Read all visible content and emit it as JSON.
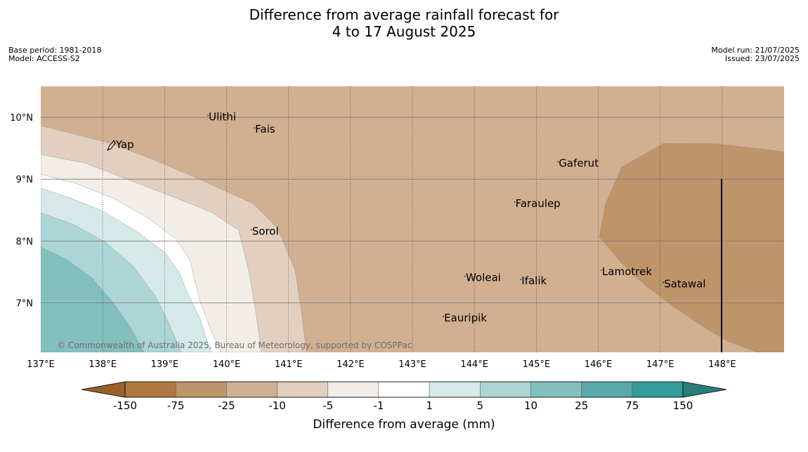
{
  "title_line1": "Difference from average rainfall forecast for",
  "title_line2": "4 to 17 August 2025",
  "meta_left": [
    "Base period: 1981-2018",
    "Model: ACCESS-S2"
  ],
  "meta_right": [
    "Model run: 21/07/2025",
    "Issued: 23/07/2025"
  ],
  "x_axis": {
    "ticks": [
      {
        "value": 137,
        "label": "137°E"
      },
      {
        "value": 138,
        "label": "138°E"
      },
      {
        "value": 139,
        "label": "139°E"
      },
      {
        "value": 140,
        "label": "140°E"
      },
      {
        "value": 141,
        "label": "141°E"
      },
      {
        "value": 142,
        "label": "142°E"
      },
      {
        "value": 143,
        "label": "143°E"
      },
      {
        "value": 144,
        "label": "144°E"
      },
      {
        "value": 145,
        "label": "145°E"
      },
      {
        "value": 146,
        "label": "146°E"
      },
      {
        "value": 147,
        "label": "147°E"
      },
      {
        "value": 148,
        "label": "148°E"
      }
    ],
    "range": [
      137,
      149
    ]
  },
  "y_axis": {
    "ticks": [
      {
        "value": 10,
        "label": "10°N"
      },
      {
        "value": 9,
        "label": "9°N"
      },
      {
        "value": 8,
        "label": "8°N"
      },
      {
        "value": 7,
        "label": "7°N"
      }
    ],
    "range": [
      6.2,
      10.5
    ]
  },
  "places": [
    {
      "name": "Yap",
      "lon": 138.2,
      "lat": 9.5
    },
    {
      "name": "Ulithi",
      "lon": 139.7,
      "lat": 9.95
    },
    {
      "name": "Fais",
      "lon": 140.45,
      "lat": 9.75
    },
    {
      "name": "Gaferut",
      "lon": 145.35,
      "lat": 9.2
    },
    {
      "name": "Faraulep",
      "lon": 144.65,
      "lat": 8.55
    },
    {
      "name": "Sorol",
      "lon": 140.4,
      "lat": 8.1
    },
    {
      "name": "Lamotrek",
      "lon": 146.05,
      "lat": 7.45
    },
    {
      "name": "Woleai",
      "lon": 143.85,
      "lat": 7.35
    },
    {
      "name": "Ifalik",
      "lon": 144.75,
      "lat": 7.3
    },
    {
      "name": "Satawal",
      "lon": 147.05,
      "lat": 7.25
    },
    {
      "name": "Eauripik",
      "lon": 143.5,
      "lat": 6.7
    }
  ],
  "copyright": "© Commonwealth of Australia 2025, Bureau of Meteorology, supported by COSPPac",
  "colorbar": {
    "title": "Difference from average (mm)",
    "labels": [
      "-150",
      "-75",
      "-25",
      "-10",
      "-5",
      "-1",
      "1",
      "5",
      "10",
      "25",
      "75",
      "150"
    ],
    "colors": {
      "under": "#99602c",
      "bins": [
        "#b07840",
        "#c09469",
        "#d1b092",
        "#e3cfbf",
        "#f2ede7",
        "#ffffff",
        "#d4e9e8",
        "#acd5d5",
        "#83bfbf",
        "#58a9a9",
        "#339b98"
      ],
      "over": "#2a7c7a"
    }
  },
  "map_colors": {
    "minus75_25": "#c09469",
    "minus25_10": "#d1b092",
    "minus10_5": "#e3cfbf",
    "minus5_1": "#f2ede7",
    "neutral": "#ffffff",
    "plus1_5": "#d4e9e8",
    "plus5_10": "#acd5d5",
    "plus10_25": "#83bfbf"
  }
}
